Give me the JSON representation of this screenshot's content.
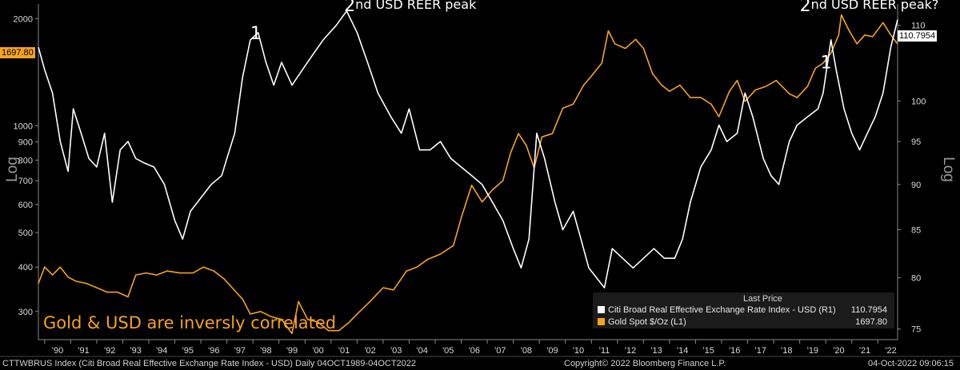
{
  "chart_data": {
    "type": "line",
    "x_range": [
      1989.76,
      2022.76
    ],
    "x_tick_labels": [
      "'90",
      "'91",
      "'92",
      "'93",
      "'94",
      "'95",
      "'96",
      "'97",
      "'98",
      "'99",
      "'00",
      "'01",
      "'02",
      "'03",
      "'04",
      "'05",
      "'06",
      "'07",
      "'08",
      "'09",
      "'10",
      "'11",
      "'12",
      "'13",
      "'14",
      "'15",
      "'16",
      "'17",
      "'18",
      "'19",
      "'20",
      "'21",
      "'22"
    ],
    "left_axis": {
      "scale": "log",
      "label": "Log",
      "ticks": [
        2000,
        1000,
        900,
        800,
        700,
        600,
        500,
        400,
        300
      ],
      "tick_labels": [
        "2000",
        "1000",
        "900",
        "800",
        "700",
        "600",
        "500",
        "400",
        "300"
      ],
      "range": [
        250,
        2200
      ]
    },
    "right_axis": {
      "scale": "log",
      "label": "Log",
      "ticks": [
        110,
        100,
        95,
        90,
        85,
        80,
        75
      ],
      "tick_labels": [
        "110",
        "100",
        "95",
        "90",
        "85",
        "80",
        "75"
      ],
      "range": [
        74,
        113
      ]
    },
    "series": [
      {
        "name": "Citi Broad Real Effective Exchange Rate Index - USD",
        "axis": "right",
        "color": "#ffffff",
        "points": [
          [
            1989.76,
            107
          ],
          [
            1990.0,
            104
          ],
          [
            1990.3,
            101
          ],
          [
            1990.6,
            95
          ],
          [
            1990.9,
            91.5
          ],
          [
            1991.1,
            99
          ],
          [
            1991.4,
            96
          ],
          [
            1991.7,
            93
          ],
          [
            1992.0,
            92
          ],
          [
            1992.3,
            96
          ],
          [
            1992.6,
            88
          ],
          [
            1992.9,
            94
          ],
          [
            1993.2,
            95
          ],
          [
            1993.5,
            93
          ],
          [
            1993.8,
            92.5
          ],
          [
            1994.2,
            92
          ],
          [
            1994.6,
            90
          ],
          [
            1995.0,
            86
          ],
          [
            1995.3,
            84
          ],
          [
            1995.6,
            87
          ],
          [
            1996.0,
            88.5
          ],
          [
            1996.4,
            90
          ],
          [
            1996.8,
            91
          ],
          [
            1997.0,
            93
          ],
          [
            1997.3,
            96
          ],
          [
            1997.6,
            103
          ],
          [
            1997.9,
            108
          ],
          [
            1998.2,
            109
          ],
          [
            1998.5,
            105
          ],
          [
            1998.8,
            102
          ],
          [
            1999.1,
            105
          ],
          [
            1999.5,
            102
          ],
          [
            1999.9,
            104
          ],
          [
            2000.3,
            106
          ],
          [
            2000.7,
            108
          ],
          [
            2001.2,
            110
          ],
          [
            2001.6,
            112
          ],
          [
            2002.0,
            109
          ],
          [
            2002.4,
            105
          ],
          [
            2002.8,
            101
          ],
          [
            2003.3,
            98
          ],
          [
            2003.7,
            96
          ],
          [
            2004.0,
            99
          ],
          [
            2004.4,
            94
          ],
          [
            2004.8,
            94
          ],
          [
            2005.2,
            95
          ],
          [
            2005.6,
            93
          ],
          [
            2006.0,
            92
          ],
          [
            2006.4,
            91
          ],
          [
            2006.8,
            90
          ],
          [
            2007.2,
            88
          ],
          [
            2007.6,
            86
          ],
          [
            2008.0,
            83
          ],
          [
            2008.3,
            81
          ],
          [
            2008.6,
            84
          ],
          [
            2008.9,
            96
          ],
          [
            2009.2,
            93
          ],
          [
            2009.6,
            88
          ],
          [
            2009.9,
            85
          ],
          [
            2010.3,
            87
          ],
          [
            2010.6,
            84
          ],
          [
            2010.9,
            81
          ],
          [
            2011.2,
            80
          ],
          [
            2011.5,
            79
          ],
          [
            2011.8,
            83
          ],
          [
            2012.2,
            82
          ],
          [
            2012.6,
            81
          ],
          [
            2013.0,
            82
          ],
          [
            2013.4,
            83
          ],
          [
            2013.8,
            82
          ],
          [
            2014.2,
            82
          ],
          [
            2014.5,
            84
          ],
          [
            2014.8,
            88
          ],
          [
            2015.2,
            92
          ],
          [
            2015.6,
            94
          ],
          [
            2015.9,
            97
          ],
          [
            2016.2,
            95
          ],
          [
            2016.6,
            96
          ],
          [
            2016.9,
            101
          ],
          [
            2017.2,
            98
          ],
          [
            2017.6,
            93
          ],
          [
            2017.9,
            91
          ],
          [
            2018.2,
            90
          ],
          [
            2018.6,
            95
          ],
          [
            2018.9,
            97
          ],
          [
            2019.3,
            98
          ],
          [
            2019.7,
            99
          ],
          [
            2019.9,
            101
          ],
          [
            2020.2,
            108
          ],
          [
            2020.4,
            104
          ],
          [
            2020.7,
            99
          ],
          [
            2021.0,
            96
          ],
          [
            2021.3,
            94
          ],
          [
            2021.6,
            96
          ],
          [
            2021.9,
            98
          ],
          [
            2022.2,
            101
          ],
          [
            2022.5,
            107
          ],
          [
            2022.76,
            110.8
          ]
        ]
      },
      {
        "name": "Gold Spot $/Oz",
        "axis": "left",
        "color": "#f7a31c",
        "points": [
          [
            1989.76,
            360
          ],
          [
            1990.0,
            400
          ],
          [
            1990.3,
            380
          ],
          [
            1990.6,
            400
          ],
          [
            1990.9,
            375
          ],
          [
            1991.2,
            365
          ],
          [
            1991.6,
            360
          ],
          [
            1992.0,
            350
          ],
          [
            1992.4,
            340
          ],
          [
            1992.8,
            340
          ],
          [
            1993.2,
            330
          ],
          [
            1993.5,
            380
          ],
          [
            1993.9,
            385
          ],
          [
            1994.3,
            380
          ],
          [
            1994.7,
            390
          ],
          [
            1995.2,
            385
          ],
          [
            1995.7,
            385
          ],
          [
            1996.1,
            400
          ],
          [
            1996.5,
            390
          ],
          [
            1996.9,
            370
          ],
          [
            1997.2,
            350
          ],
          [
            1997.6,
            325
          ],
          [
            1997.9,
            295
          ],
          [
            1998.3,
            300
          ],
          [
            1998.7,
            290
          ],
          [
            1999.1,
            285
          ],
          [
            1999.5,
            260
          ],
          [
            1999.75,
            320
          ],
          [
            2000.1,
            285
          ],
          [
            2000.5,
            280
          ],
          [
            2000.9,
            265
          ],
          [
            2001.3,
            265
          ],
          [
            2001.7,
            280
          ],
          [
            2002.1,
            300
          ],
          [
            2002.5,
            320
          ],
          [
            2003.0,
            350
          ],
          [
            2003.4,
            345
          ],
          [
            2003.9,
            390
          ],
          [
            2004.3,
            400
          ],
          [
            2004.7,
            420
          ],
          [
            2005.2,
            435
          ],
          [
            2005.7,
            460
          ],
          [
            2006.0,
            550
          ],
          [
            2006.4,
            680
          ],
          [
            2006.8,
            610
          ],
          [
            2007.2,
            660
          ],
          [
            2007.6,
            700
          ],
          [
            2007.9,
            840
          ],
          [
            2008.2,
            950
          ],
          [
            2008.5,
            880
          ],
          [
            2008.8,
            760
          ],
          [
            2009.1,
            930
          ],
          [
            2009.5,
            950
          ],
          [
            2009.9,
            1120
          ],
          [
            2010.3,
            1150
          ],
          [
            2010.7,
            1300
          ],
          [
            2011.0,
            1380
          ],
          [
            2011.4,
            1500
          ],
          [
            2011.65,
            1850
          ],
          [
            2011.9,
            1700
          ],
          [
            2012.3,
            1650
          ],
          [
            2012.7,
            1750
          ],
          [
            2013.0,
            1650
          ],
          [
            2013.35,
            1400
          ],
          [
            2013.7,
            1300
          ],
          [
            2014.0,
            1250
          ],
          [
            2014.4,
            1300
          ],
          [
            2014.8,
            1200
          ],
          [
            2015.2,
            1200
          ],
          [
            2015.6,
            1150
          ],
          [
            2015.9,
            1060
          ],
          [
            2016.3,
            1250
          ],
          [
            2016.6,
            1340
          ],
          [
            2016.9,
            1170
          ],
          [
            2017.3,
            1260
          ],
          [
            2017.7,
            1290
          ],
          [
            2018.1,
            1340
          ],
          [
            2018.6,
            1230
          ],
          [
            2018.9,
            1200
          ],
          [
            2019.3,
            1290
          ],
          [
            2019.6,
            1450
          ],
          [
            2019.9,
            1500
          ],
          [
            2020.2,
            1600
          ],
          [
            2020.5,
            1800
          ],
          [
            2020.6,
            2050
          ],
          [
            2020.9,
            1850
          ],
          [
            2021.2,
            1700
          ],
          [
            2021.5,
            1800
          ],
          [
            2021.8,
            1780
          ],
          [
            2022.2,
            1950
          ],
          [
            2022.5,
            1800
          ],
          [
            2022.76,
            1697.8
          ]
        ]
      }
    ],
    "annotations": [
      {
        "text_main": "1",
        "text_sup": "",
        "year": 1997.9,
        "value": 1750
      },
      {
        "text_main": "2",
        "text_sup": "nd USD REER peak",
        "year": 2001.5,
        "value": 2100
      },
      {
        "text_main": "2",
        "text_sup": "nd USD REER peak?",
        "year": 2019.0,
        "value": 2100
      },
      {
        "text_main": "1",
        "text_sup": "",
        "year": 2019.8,
        "value": 1450
      }
    ],
    "caption": "Gold & USD are inversly correlated",
    "last_value_tags": {
      "left": {
        "text": "1697.80",
        "color": "#f7a31c"
      },
      "right": {
        "text": "110.7954",
        "color": "#ffffff"
      }
    },
    "legend": {
      "title": "Last Price",
      "entries": [
        {
          "label": "Citi Broad Real Effective Exchange Rate Index - USD  (R1)",
          "value": "110.7954",
          "color": "#ffffff"
        },
        {
          "label": "Gold Spot $/Oz  (L1)",
          "value": "1697.80",
          "color": "#f7a31c"
        }
      ]
    }
  },
  "footer": {
    "left": "CTTWBRUS Index (Citi Broad Real Effective Exchange Rate Index - USD)  Daily 04OCT1989-04OCT2022",
    "center": "Copyright© 2022 Bloomberg Finance L.P.",
    "right": "04-Oct-2022 09:06:15"
  }
}
